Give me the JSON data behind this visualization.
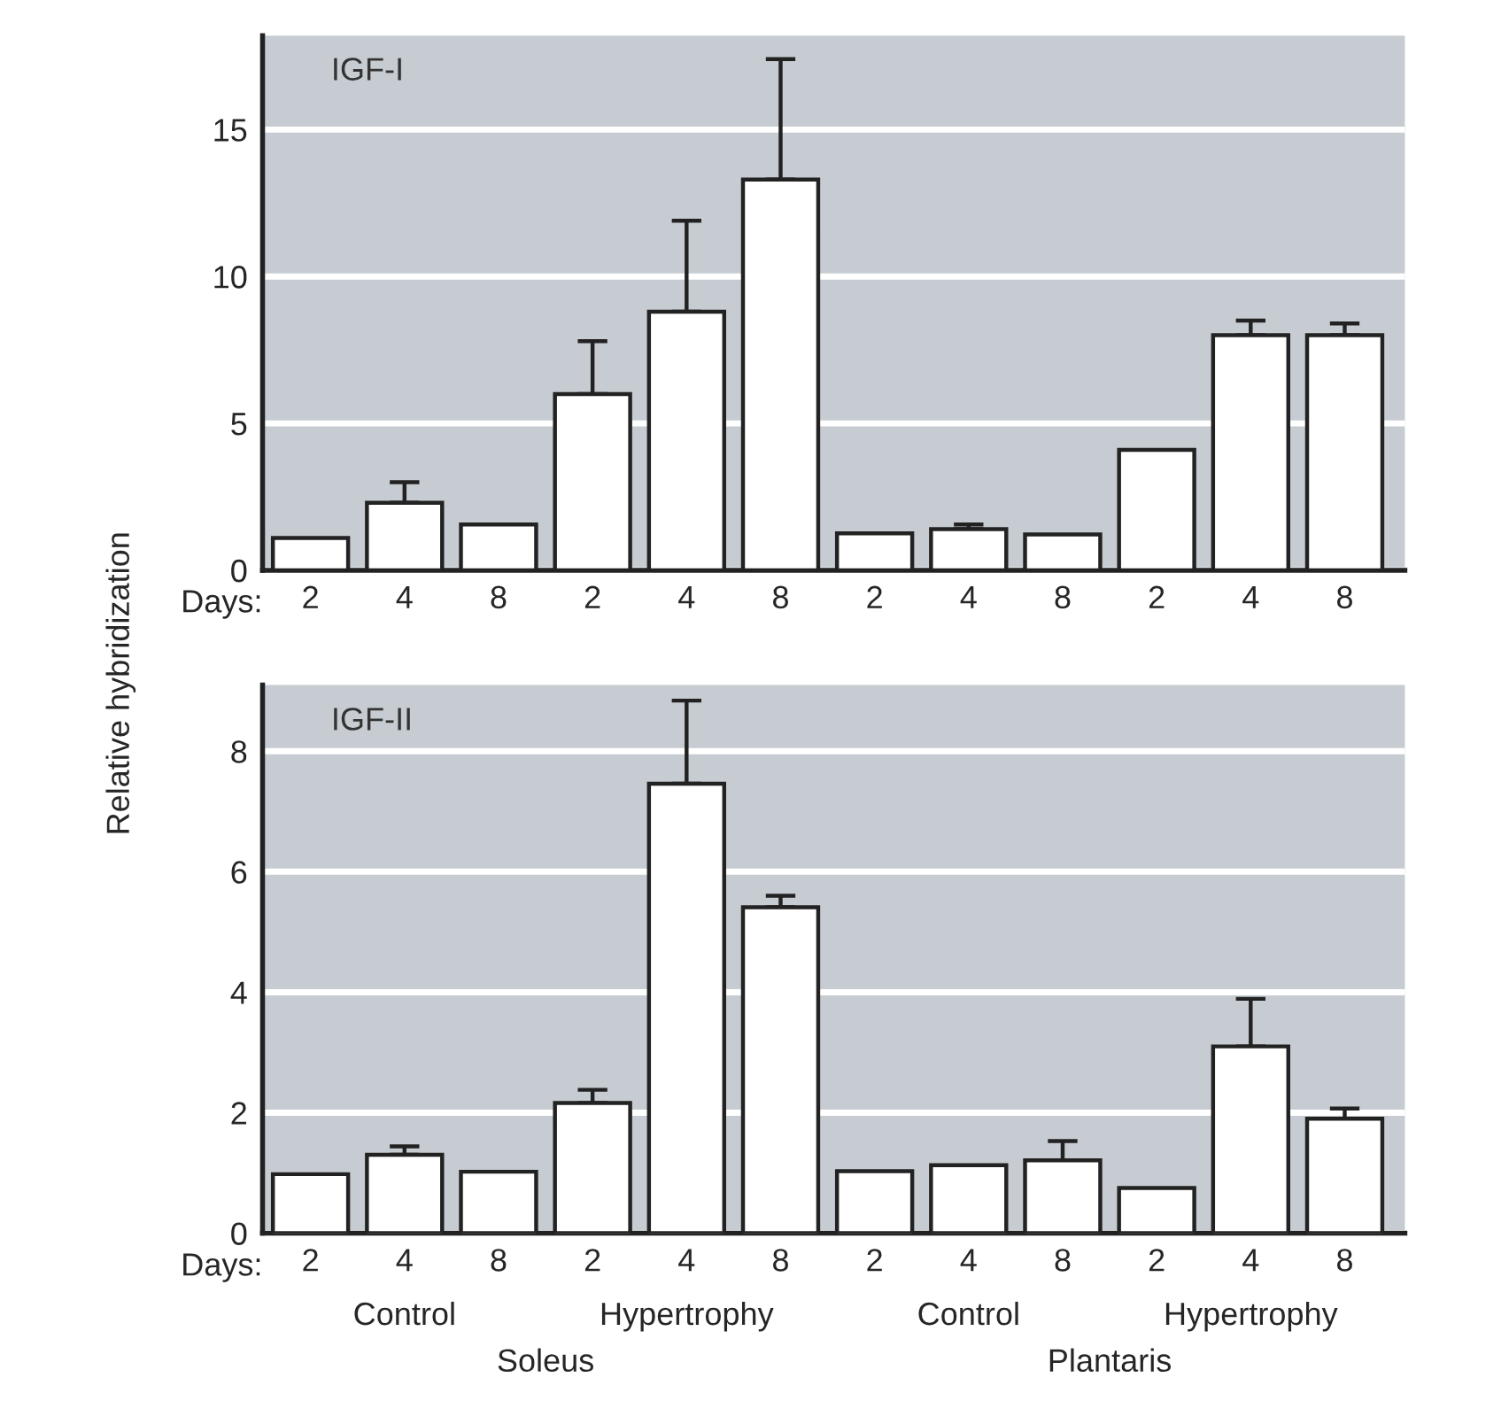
{
  "chart_data": [
    {
      "type": "bar",
      "title": "IGF-I",
      "ylabel": "Relative hybridization",
      "categories": [
        "2",
        "4",
        "8",
        "2",
        "4",
        "8",
        "2",
        "4",
        "8",
        "2",
        "4",
        "8"
      ],
      "series": [
        {
          "color": "#ffffff",
          "values": [
            1.1,
            2.3,
            1.56,
            6.0,
            8.8,
            13.3,
            1.26,
            1.4,
            1.22,
            4.1,
            8.0,
            8.0
          ],
          "errors": [
            null,
            [
              2.3,
              3.0
            ],
            null,
            [
              6.0,
              7.8
            ],
            [
              8.8,
              11.9
            ],
            [
              13.3,
              17.4
            ],
            null,
            [
              1.4,
              1.56
            ],
            null,
            null,
            [
              8.0,
              8.5
            ],
            [
              8.0,
              8.4
            ]
          ]
        }
      ],
      "ylim": [
        0,
        18.2
      ],
      "yticks": [
        0,
        5,
        10,
        15
      ],
      "grid": "y",
      "annotations": [
        "Days:"
      ]
    },
    {
      "type": "bar",
      "title": "IGF-II",
      "categories": [
        "2",
        "4",
        "8",
        "2",
        "4",
        "8",
        "2",
        "4",
        "8",
        "2",
        "4",
        "8"
      ],
      "series": [
        {
          "color": "#ffffff",
          "values": [
            0.98,
            1.3,
            1.02,
            2.16,
            7.46,
            5.41,
            1.03,
            1.13,
            1.21,
            0.75,
            3.1,
            1.9
          ],
          "errors": [
            null,
            [
              1.3,
              1.44
            ],
            null,
            [
              2.16,
              2.38
            ],
            [
              7.46,
              8.84
            ],
            [
              5.41,
              5.6
            ],
            null,
            null,
            [
              1.21,
              1.53
            ],
            null,
            [
              3.1,
              3.89
            ],
            [
              1.9,
              2.07
            ]
          ]
        }
      ],
      "ylim": [
        0,
        9.1
      ],
      "yticks": [
        0,
        2,
        4,
        6,
        8
      ],
      "grid": "y",
      "annotations": [
        "Days:",
        "Control",
        "Hypertrophy",
        "Control",
        "Hypertrophy",
        "Soleus",
        "Plantaris"
      ]
    }
  ]
}
